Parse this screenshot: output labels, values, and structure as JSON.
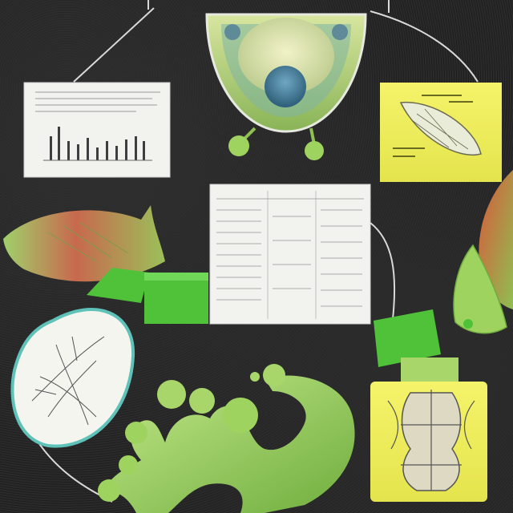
{
  "scene": {
    "background_color": "#262626",
    "accent_green": "#4fc23a",
    "pale_green": "#a9d66b",
    "note_yellow": "#f5f36a",
    "paper_white": "#f2f2ee",
    "coral": "#c8694e"
  },
  "elements": [
    "green-organism-icon",
    "bar-chart-paper",
    "sticky-note-diagram",
    "document-sheet",
    "fish-illustration",
    "leaf-sketch-egg",
    "amoeba-cell-shape",
    "yellow-skeleton-card",
    "red-leaf-shape",
    "connector-lines"
  ]
}
